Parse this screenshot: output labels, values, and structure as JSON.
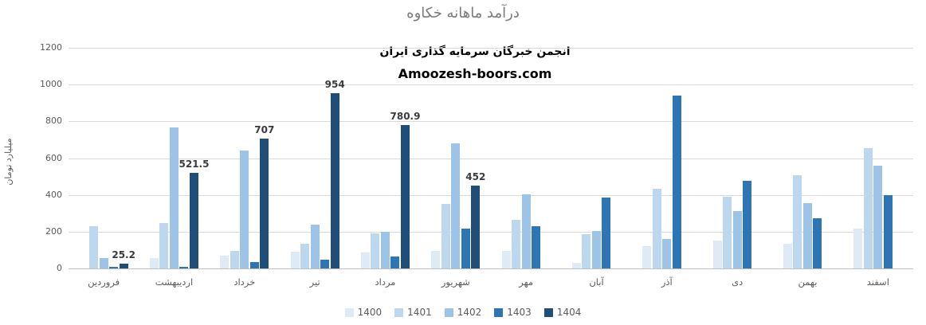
{
  "title": "درآمد ماهانه خکاوه",
  "watermark": {
    "line1": "انجمن خبرگان سرمایه گذاری ایران",
    "line2": "Amoozesh-boors.com"
  },
  "chart_data": {
    "type": "bar",
    "title": "درآمد ماهانه خکاوه",
    "xlabel": "",
    "ylabel": "میلیارد تومان",
    "ylim": [
      0,
      1200
    ],
    "yticks": [
      0,
      200,
      400,
      600,
      800,
      1000,
      1200
    ],
    "grid": true,
    "legend_position": "bottom",
    "categories": [
      "فروردین",
      "اردیبهشت",
      "خرداد",
      "تیر",
      "مرداد",
      "شهریور",
      "مهر",
      "آبان",
      "آذر",
      "دی",
      "بهمن",
      "اسفند"
    ],
    "series": [
      {
        "name": "1400",
        "color": "#DEEBF7",
        "values": [
          null,
          55,
          70,
          90,
          85,
          95,
          95,
          30,
          120,
          150,
          135,
          215
        ]
      },
      {
        "name": "1401",
        "color": "#BDD7EE",
        "values": [
          230,
          245,
          95,
          135,
          190,
          350,
          265,
          185,
          435,
          390,
          505,
          655
        ]
      },
      {
        "name": "1402",
        "color": "#9DC3E6",
        "values": [
          57,
          765,
          640,
          240,
          200,
          680,
          405,
          205,
          160,
          310,
          355,
          560
        ]
      },
      {
        "name": "1403",
        "color": "#2E75B6",
        "values": [
          8,
          10,
          33,
          48,
          63,
          215,
          230,
          385,
          940,
          475,
          275,
          400
        ]
      },
      {
        "name": "1404",
        "color": "#1F4E79",
        "values": [
          25.2,
          521.5,
          707,
          954,
          780.9,
          452,
          null,
          null,
          null,
          null,
          null,
          null
        ],
        "data_labels": true
      }
    ],
    "data_label_values": [
      "25.2",
      "521.5",
      "707",
      "954",
      "780.9",
      "452"
    ],
    "colors": {
      "title_text": "#7a7a7a",
      "axis_text": "#595959",
      "gridline": "#d9d9d9",
      "data_label_text": "#3a3a3a",
      "watermark_text": "#000000",
      "background": "#ffffff"
    }
  }
}
